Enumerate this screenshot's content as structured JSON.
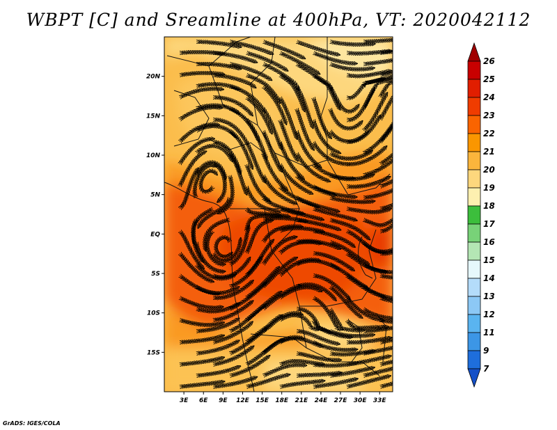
{
  "title": "WBPT [C] and Sreamline at 400hPa, VT: 2020042112",
  "footer": "GrADS: IGES/COLA",
  "map": {
    "lon_range": [
      0,
      35
    ],
    "lat_range": [
      -20,
      25
    ],
    "lat_ticks": [
      {
        "value": 20,
        "label": "20N"
      },
      {
        "value": 15,
        "label": "15N"
      },
      {
        "value": 10,
        "label": "10N"
      },
      {
        "value": 5,
        "label": "5N"
      },
      {
        "value": 0,
        "label": "EQ"
      },
      {
        "value": -5,
        "label": "5S"
      },
      {
        "value": -10,
        "label": "10S"
      },
      {
        "value": -15,
        "label": "15S"
      }
    ],
    "lon_ticks": [
      {
        "value": 3,
        "label": "3E"
      },
      {
        "value": 6,
        "label": "6E"
      },
      {
        "value": 9,
        "label": "9E"
      },
      {
        "value": 12,
        "label": "12E"
      },
      {
        "value": 15,
        "label": "15E"
      },
      {
        "value": 18,
        "label": "18E"
      },
      {
        "value": 21,
        "label": "21E"
      },
      {
        "value": 24,
        "label": "24E"
      },
      {
        "value": 27,
        "label": "27E"
      },
      {
        "value": 30,
        "label": "30E"
      },
      {
        "value": 33,
        "label": "33E"
      }
    ]
  },
  "colorbar": {
    "levels": [
      "26",
      "25",
      "24",
      "23",
      "22",
      "21",
      "20",
      "19",
      "18",
      "17",
      "16",
      "15",
      "14",
      "13",
      "12",
      "11",
      "9",
      "7"
    ],
    "colors": [
      "#a00000",
      "#c80000",
      "#e11e00",
      "#f03c00",
      "#fa6400",
      "#fa9600",
      "#fbb53c",
      "#fdd77d",
      "#fdf0b0",
      "#3cbe3c",
      "#78d278",
      "#b4e6b4",
      "#e6f8fc",
      "#b4dcfa",
      "#8cc8f5",
      "#5ab4f0",
      "#3c96e6",
      "#1e6edc",
      "#1450c8"
    ]
  }
}
